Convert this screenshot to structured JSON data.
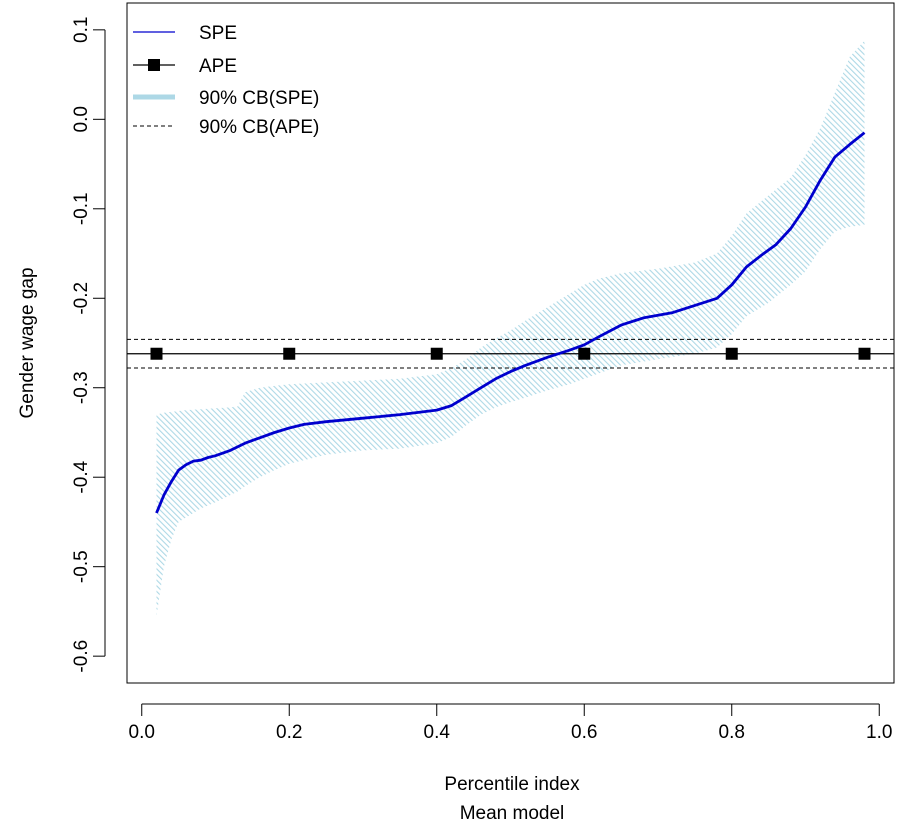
{
  "chart_data": {
    "type": "line",
    "xlabel": "Percentile index",
    "xsublabel": "Mean model",
    "ylabel": "Gender wage gap",
    "xlim": [
      -0.02,
      1.02
    ],
    "ylim": [
      -0.63,
      0.13
    ],
    "xticks": [
      "0.0",
      "0.2",
      "0.4",
      "0.6",
      "0.8",
      "1.0"
    ],
    "xtick_values": [
      0,
      0.2,
      0.4,
      0.6,
      0.8,
      1.0
    ],
    "yticks": [
      "0.1",
      "0.0",
      "-0.1",
      "-0.2",
      "-0.3",
      "-0.4",
      "-0.5",
      "-0.6"
    ],
    "ytick_values": [
      0.1,
      0.0,
      -0.1,
      -0.2,
      -0.3,
      -0.4,
      -0.5,
      -0.6
    ],
    "legend_position": "top-left",
    "colors": {
      "spe": "#0000cd",
      "band": "#add8e6",
      "ape": "#000000"
    },
    "legend": [
      {
        "label": "SPE",
        "style": "line-blue"
      },
      {
        "label": "APE",
        "style": "line-square"
      },
      {
        "label": "90% CB(SPE)",
        "style": "band"
      },
      {
        "label": "90% CB(APE)",
        "style": "dashed"
      }
    ],
    "series": [
      {
        "name": "SPE",
        "x": [
          0.02,
          0.03,
          0.04,
          0.05,
          0.06,
          0.07,
          0.08,
          0.09,
          0.1,
          0.12,
          0.14,
          0.16,
          0.18,
          0.2,
          0.22,
          0.25,
          0.3,
          0.35,
          0.4,
          0.42,
          0.44,
          0.46,
          0.48,
          0.5,
          0.52,
          0.55,
          0.58,
          0.6,
          0.62,
          0.65,
          0.68,
          0.7,
          0.72,
          0.75,
          0.78,
          0.8,
          0.82,
          0.84,
          0.86,
          0.88,
          0.9,
          0.92,
          0.94,
          0.96,
          0.98
        ],
        "y": [
          -0.44,
          -0.42,
          -0.405,
          -0.392,
          -0.386,
          -0.382,
          -0.381,
          -0.378,
          -0.376,
          -0.37,
          -0.362,
          -0.356,
          -0.35,
          -0.345,
          -0.341,
          -0.338,
          -0.334,
          -0.33,
          -0.325,
          -0.32,
          -0.31,
          -0.3,
          -0.29,
          -0.282,
          -0.275,
          -0.266,
          -0.258,
          -0.252,
          -0.243,
          -0.23,
          -0.222,
          -0.219,
          -0.216,
          -0.208,
          -0.2,
          -0.185,
          -0.165,
          -0.152,
          -0.14,
          -0.122,
          -0.098,
          -0.068,
          -0.042,
          -0.028,
          -0.015
        ]
      },
      {
        "name": "APE",
        "x": [
          0.02,
          0.2,
          0.4,
          0.6,
          0.8,
          0.98
        ],
        "y": [
          -0.262,
          -0.262,
          -0.262,
          -0.262,
          -0.262,
          -0.262
        ]
      }
    ],
    "band": {
      "name": "90% CB(SPE)",
      "x": [
        0.02,
        0.03,
        0.04,
        0.05,
        0.06,
        0.08,
        0.1,
        0.12,
        0.13,
        0.14,
        0.16,
        0.18,
        0.2,
        0.25,
        0.3,
        0.35,
        0.4,
        0.42,
        0.44,
        0.46,
        0.48,
        0.5,
        0.52,
        0.55,
        0.58,
        0.6,
        0.62,
        0.65,
        0.7,
        0.75,
        0.78,
        0.8,
        0.82,
        0.85,
        0.88,
        0.9,
        0.92,
        0.94,
        0.96,
        0.98
      ],
      "lower": [
        -0.555,
        -0.5,
        -0.47,
        -0.45,
        -0.445,
        -0.435,
        -0.428,
        -0.42,
        -0.416,
        -0.41,
        -0.4,
        -0.392,
        -0.385,
        -0.375,
        -0.37,
        -0.368,
        -0.362,
        -0.355,
        -0.342,
        -0.33,
        -0.322,
        -0.316,
        -0.311,
        -0.303,
        -0.296,
        -0.29,
        -0.284,
        -0.275,
        -0.268,
        -0.262,
        -0.255,
        -0.24,
        -0.22,
        -0.205,
        -0.185,
        -0.17,
        -0.145,
        -0.125,
        -0.12,
        -0.118
      ],
      "upper": [
        -0.33,
        -0.328,
        -0.327,
        -0.326,
        -0.325,
        -0.324,
        -0.323,
        -0.322,
        -0.321,
        -0.305,
        -0.3,
        -0.298,
        -0.296,
        -0.294,
        -0.292,
        -0.29,
        -0.285,
        -0.278,
        -0.268,
        -0.255,
        -0.245,
        -0.236,
        -0.225,
        -0.21,
        -0.195,
        -0.185,
        -0.178,
        -0.172,
        -0.167,
        -0.16,
        -0.15,
        -0.13,
        -0.105,
        -0.085,
        -0.065,
        -0.04,
        -0.01,
        0.03,
        0.07,
        0.088
      ]
    },
    "ape_band": {
      "name": "90% CB(APE)",
      "lower": -0.278,
      "upper": -0.246
    }
  }
}
